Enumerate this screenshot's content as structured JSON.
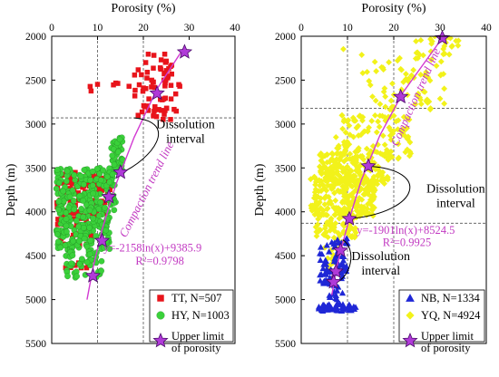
{
  "chart_data": [
    {
      "type": "scatter",
      "panel": "left",
      "xlabel": "Porosity (%)",
      "ylabel": "Depth (m)",
      "xlim": [
        0,
        40
      ],
      "ylim": [
        5500,
        2000
      ],
      "x_ticks": [
        "0",
        "10",
        "20",
        "30",
        "40"
      ],
      "y_ticks": [
        "2000",
        "2500",
        "3000",
        "3500",
        "4000",
        "4500",
        "5000",
        "5500"
      ],
      "reference_lines": {
        "porosity": [
          10,
          20
        ],
        "depth": 2930
      },
      "interval_label": "Dissolution\ninterval",
      "trend_label": "Compaction trend line",
      "equation": "y=-2158ln(x)+9385.9",
      "r2": "R²=0.9798",
      "trend_line": [
        {
          "porosity": 7.7,
          "depth": 5000
        },
        {
          "porosity": 9.0,
          "depth": 4640
        },
        {
          "porosity": 11.0,
          "depth": 4200
        },
        {
          "porosity": 14.0,
          "depth": 3690
        },
        {
          "porosity": 18.0,
          "depth": 3150
        },
        {
          "porosity": 23.0,
          "depth": 2600
        },
        {
          "porosity": 29.0,
          "depth": 2120
        }
      ],
      "upper_limit_points": [
        {
          "porosity": 29.0,
          "depth": 2180
        },
        {
          "porosity": 23.0,
          "depth": 2650
        },
        {
          "porosity": 15.0,
          "depth": 3550
        },
        {
          "porosity": 12.5,
          "depth": 3830
        },
        {
          "porosity": 11.0,
          "depth": 4330
        },
        {
          "porosity": 9.0,
          "depth": 4730
        }
      ],
      "series": [
        {
          "name": "TT, N=507",
          "color": "#e8141b",
          "marker": "square"
        },
        {
          "name": "HY, N=1003",
          "color": "#3ad13a",
          "marker": "circle"
        }
      ],
      "legend": {
        "position": "bottom-right",
        "upper_limit_label": "Upper limit\nof porosity"
      }
    },
    {
      "type": "scatter",
      "panel": "right",
      "xlabel": "Porosity (%)",
      "ylabel": "Depth (m)",
      "xlim": [
        0,
        40
      ],
      "ylim": [
        5500,
        2000
      ],
      "x_ticks": [
        "0",
        "10",
        "20",
        "30",
        "40"
      ],
      "y_ticks": [
        "2000",
        "2500",
        "3000",
        "3500",
        "4000",
        "4500",
        "5000",
        "5500"
      ],
      "reference_lines": {
        "porosity": [
          10,
          20
        ],
        "depth": [
          2820,
          4130
        ]
      },
      "interval_labels": [
        "Dissolution\ninterval",
        "Dissolution\ninterval"
      ],
      "trend_label": "Compaction trend line",
      "equation": "y=-1901ln(x)+8524.5",
      "r2": "R²=0.9925",
      "trend_line": [
        {
          "porosity": 6.6,
          "depth": 4950
        },
        {
          "porosity": 7.6,
          "depth": 4650
        },
        {
          "porosity": 9.0,
          "depth": 4350
        },
        {
          "porosity": 10.4,
          "depth": 4080
        },
        {
          "porosity": 13.0,
          "depth": 3640
        },
        {
          "porosity": 17.0,
          "depth": 3130
        },
        {
          "porosity": 22.0,
          "depth": 2640
        },
        {
          "porosity": 30.5,
          "depth": 2020
        }
      ],
      "upper_limit_points": [
        {
          "porosity": 30.5,
          "depth": 2020
        },
        {
          "porosity": 21.5,
          "depth": 2690
        },
        {
          "porosity": 14.5,
          "depth": 3480
        },
        {
          "porosity": 10.4,
          "depth": 4080
        },
        {
          "porosity": 8.5,
          "depth": 4440
        },
        {
          "porosity": 7.5,
          "depth": 4680
        },
        {
          "porosity": 7.0,
          "depth": 4800
        }
      ],
      "series": [
        {
          "name": "NB, N=1334",
          "color": "#1f27d6",
          "marker": "triangle"
        },
        {
          "name": "YQ, N=4924",
          "color": "#f2f21a",
          "marker": "diamond"
        }
      ],
      "legend": {
        "position": "bottom-right",
        "upper_limit_label": "Upper limit\nof porosity"
      }
    }
  ]
}
